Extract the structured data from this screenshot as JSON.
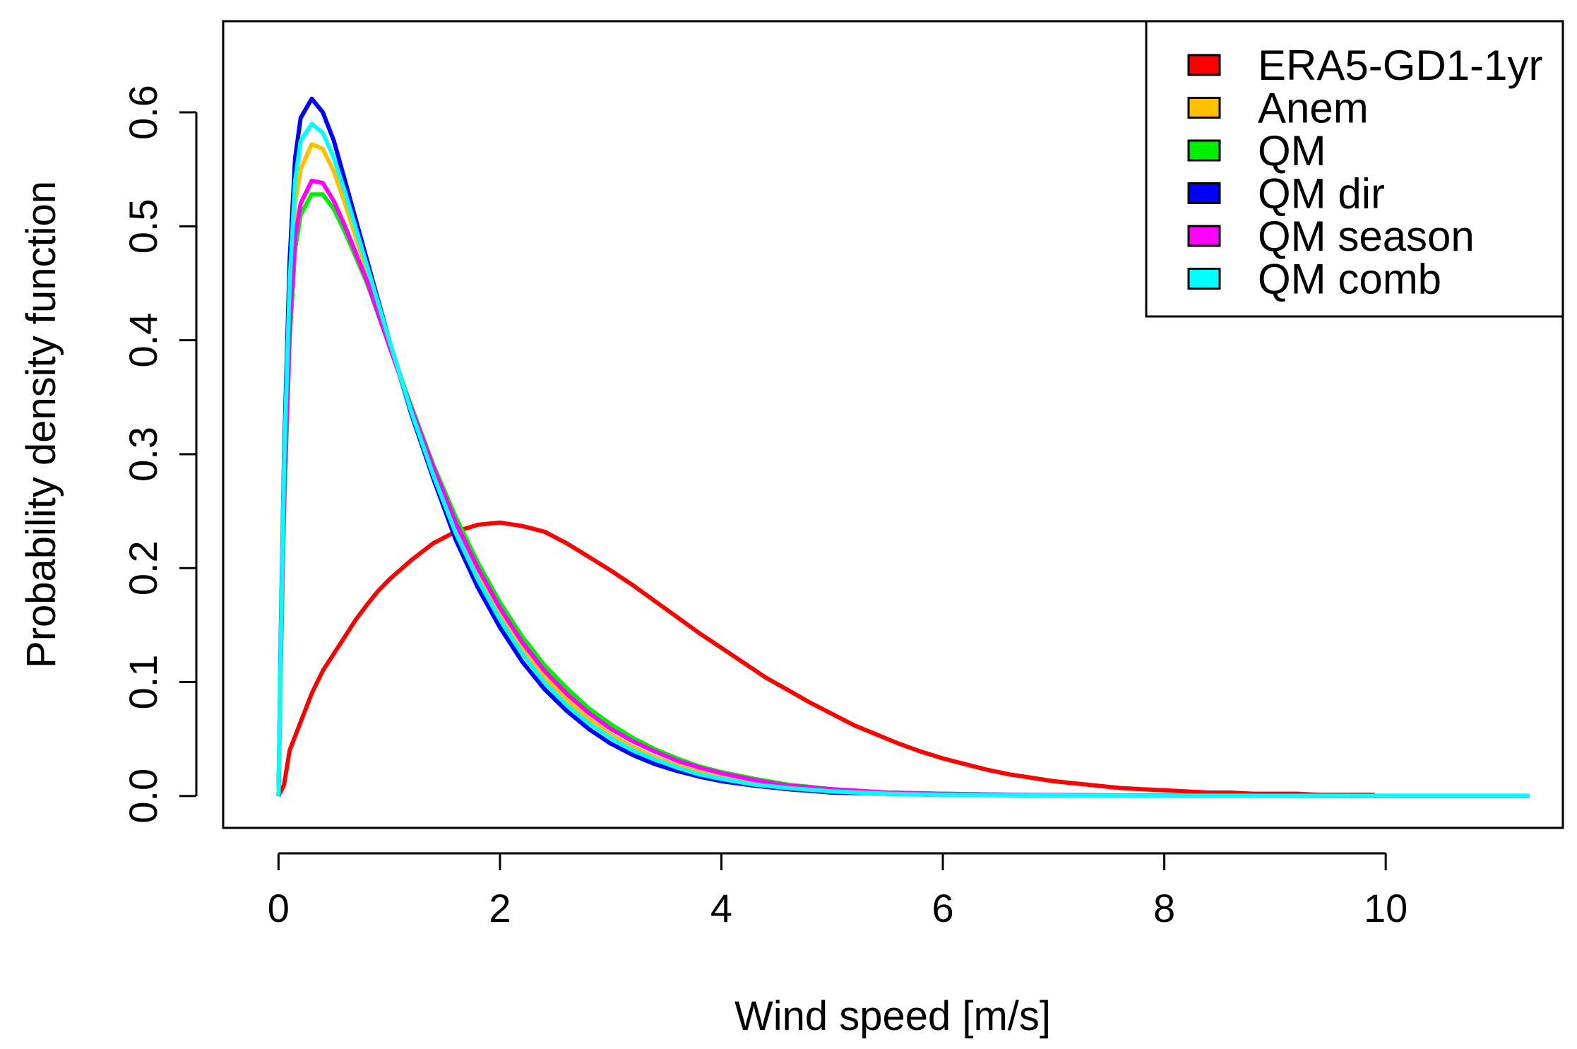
{
  "chart_data": {
    "type": "line",
    "title": "",
    "xlabel": "Wind speed [m/s]",
    "ylabel": "Probability density function",
    "xlim": [
      -0.5,
      11.6
    ],
    "ylim": [
      -0.028,
      0.68
    ],
    "xticks": [
      "0",
      "2",
      "4",
      "6",
      "8",
      "10"
    ],
    "xtick_values": [
      0,
      2,
      4,
      6,
      8,
      10
    ],
    "yticks": [
      "0.0",
      "0.1",
      "0.2",
      "0.3",
      "0.4",
      "0.5",
      "0.6"
    ],
    "ytick_values": [
      0.0,
      0.1,
      0.2,
      0.3,
      0.4,
      0.5,
      0.6
    ],
    "legend_position": "top-right",
    "series": [
      {
        "name": "ERA5-GD1-1yr",
        "color": "#ff0000",
        "x": [
          0,
          0.05,
          0.1,
          0.2,
          0.3,
          0.4,
          0.5,
          0.6,
          0.7,
          0.8,
          0.9,
          1.0,
          1.2,
          1.4,
          1.6,
          1.8,
          2.0,
          2.2,
          2.4,
          2.6,
          2.8,
          3.0,
          3.2,
          3.4,
          3.6,
          3.8,
          4.0,
          4.2,
          4.4,
          4.6,
          4.8,
          5.0,
          5.2,
          5.4,
          5.6,
          5.8,
          6.0,
          6.2,
          6.4,
          6.6,
          6.8,
          7.0,
          7.2,
          7.4,
          7.6,
          7.8,
          8.0,
          8.2,
          8.4,
          8.6,
          8.8,
          9.0,
          9.2,
          9.4,
          9.6,
          9.9
        ],
        "y": [
          0.0,
          0.01,
          0.04,
          0.065,
          0.09,
          0.11,
          0.125,
          0.14,
          0.155,
          0.168,
          0.18,
          0.19,
          0.207,
          0.222,
          0.232,
          0.238,
          0.24,
          0.237,
          0.232,
          0.222,
          0.21,
          0.198,
          0.185,
          0.171,
          0.157,
          0.143,
          0.13,
          0.117,
          0.104,
          0.093,
          0.082,
          0.072,
          0.062,
          0.054,
          0.046,
          0.039,
          0.033,
          0.028,
          0.023,
          0.019,
          0.016,
          0.013,
          0.011,
          0.009,
          0.007,
          0.006,
          0.005,
          0.004,
          0.003,
          0.003,
          0.002,
          0.002,
          0.002,
          0.001,
          0.001,
          0.001
        ]
      },
      {
        "name": "Anem",
        "color": "#ffc000",
        "x": [
          0,
          0.02,
          0.05,
          0.1,
          0.15,
          0.2,
          0.3,
          0.4,
          0.5,
          0.6,
          0.8,
          1.0,
          1.2,
          1.4,
          1.6,
          1.8,
          2.0,
          2.2,
          2.4,
          2.6,
          2.8,
          3.0,
          3.2,
          3.4,
          3.6,
          3.8,
          4.0,
          4.3,
          4.6,
          5.0,
          5.5,
          6.0,
          7.0,
          8.0,
          9.0,
          10.0,
          11.3
        ],
        "y": [
          0.0,
          0.12,
          0.28,
          0.43,
          0.52,
          0.55,
          0.572,
          0.568,
          0.548,
          0.52,
          0.46,
          0.4,
          0.34,
          0.285,
          0.235,
          0.195,
          0.16,
          0.13,
          0.105,
          0.085,
          0.068,
          0.054,
          0.043,
          0.034,
          0.027,
          0.021,
          0.016,
          0.011,
          0.007,
          0.004,
          0.002,
          0.001,
          0.0005,
          0.0003,
          0.0002,
          0.0001,
          0.0
        ]
      },
      {
        "name": "QM",
        "color": "#00ee00",
        "x": [
          0,
          0.02,
          0.05,
          0.1,
          0.15,
          0.2,
          0.3,
          0.4,
          0.5,
          0.6,
          0.8,
          1.0,
          1.2,
          1.4,
          1.6,
          1.8,
          2.0,
          2.2,
          2.4,
          2.6,
          2.8,
          3.0,
          3.2,
          3.4,
          3.6,
          3.8,
          4.0,
          4.3,
          4.6,
          5.0,
          5.5,
          6.0,
          6.7,
          7.0,
          8.0,
          9.0,
          10.0,
          11.3
        ],
        "y": [
          0.0,
          0.11,
          0.25,
          0.4,
          0.48,
          0.51,
          0.528,
          0.528,
          0.515,
          0.495,
          0.45,
          0.395,
          0.342,
          0.29,
          0.245,
          0.205,
          0.17,
          0.14,
          0.115,
          0.095,
          0.077,
          0.063,
          0.051,
          0.041,
          0.033,
          0.026,
          0.021,
          0.015,
          0.01,
          0.006,
          0.003,
          0.002,
          0.001,
          0.0008,
          0.0004,
          0.0002,
          0.0001,
          0.0
        ]
      },
      {
        "name": "QM dir",
        "color": "#0000ff",
        "x": [
          0,
          0.02,
          0.05,
          0.1,
          0.15,
          0.2,
          0.3,
          0.4,
          0.5,
          0.6,
          0.8,
          1.0,
          1.2,
          1.4,
          1.6,
          1.8,
          2.0,
          2.2,
          2.4,
          2.6,
          2.8,
          3.0,
          3.2,
          3.4,
          3.6,
          3.8,
          4.0,
          4.3,
          4.6,
          5.0,
          5.5,
          6.0,
          7.0,
          8.0,
          9.0,
          10.0,
          11.3
        ],
        "y": [
          0.0,
          0.14,
          0.3,
          0.47,
          0.56,
          0.595,
          0.612,
          0.6,
          0.575,
          0.54,
          0.47,
          0.4,
          0.335,
          0.278,
          0.225,
          0.183,
          0.148,
          0.118,
          0.094,
          0.075,
          0.059,
          0.046,
          0.036,
          0.028,
          0.022,
          0.017,
          0.013,
          0.009,
          0.006,
          0.003,
          0.002,
          0.001,
          0.0005,
          0.0003,
          0.0002,
          0.0001,
          0.0
        ]
      },
      {
        "name": "QM season",
        "color": "#ff00ff",
        "x": [
          0,
          0.02,
          0.05,
          0.1,
          0.15,
          0.2,
          0.3,
          0.4,
          0.5,
          0.6,
          0.8,
          1.0,
          1.2,
          1.4,
          1.6,
          1.8,
          2.0,
          2.2,
          2.4,
          2.6,
          2.8,
          3.0,
          3.2,
          3.4,
          3.6,
          3.8,
          4.0,
          4.3,
          4.6,
          5.0,
          5.5,
          6.0,
          6.7,
          7.0,
          8.0,
          9.0,
          10.0,
          11.3
        ],
        "y": [
          0.0,
          0.12,
          0.26,
          0.41,
          0.49,
          0.52,
          0.54,
          0.538,
          0.522,
          0.5,
          0.452,
          0.395,
          0.34,
          0.288,
          0.24,
          0.2,
          0.165,
          0.135,
          0.11,
          0.09,
          0.073,
          0.059,
          0.048,
          0.039,
          0.031,
          0.025,
          0.02,
          0.014,
          0.009,
          0.006,
          0.003,
          0.002,
          0.001,
          0.0008,
          0.0004,
          0.0002,
          0.0001,
          0.0
        ]
      },
      {
        "name": "QM comb",
        "color": "#00ffff",
        "x": [
          0,
          0.02,
          0.05,
          0.1,
          0.15,
          0.2,
          0.3,
          0.4,
          0.5,
          0.6,
          0.8,
          1.0,
          1.2,
          1.4,
          1.6,
          1.8,
          2.0,
          2.2,
          2.4,
          2.6,
          2.8,
          3.0,
          3.2,
          3.4,
          3.6,
          3.8,
          4.0,
          4.3,
          4.6,
          5.0,
          5.5,
          6.0,
          7.0,
          8.0,
          9.0,
          10.0,
          11.3
        ],
        "y": [
          0.0,
          0.13,
          0.29,
          0.45,
          0.54,
          0.575,
          0.59,
          0.582,
          0.56,
          0.53,
          0.465,
          0.4,
          0.337,
          0.281,
          0.231,
          0.19,
          0.155,
          0.125,
          0.1,
          0.08,
          0.064,
          0.051,
          0.04,
          0.032,
          0.025,
          0.019,
          0.015,
          0.01,
          0.007,
          0.004,
          0.002,
          0.001,
          0.0005,
          0.0003,
          0.0002,
          0.0001,
          0.0
        ]
      }
    ]
  }
}
